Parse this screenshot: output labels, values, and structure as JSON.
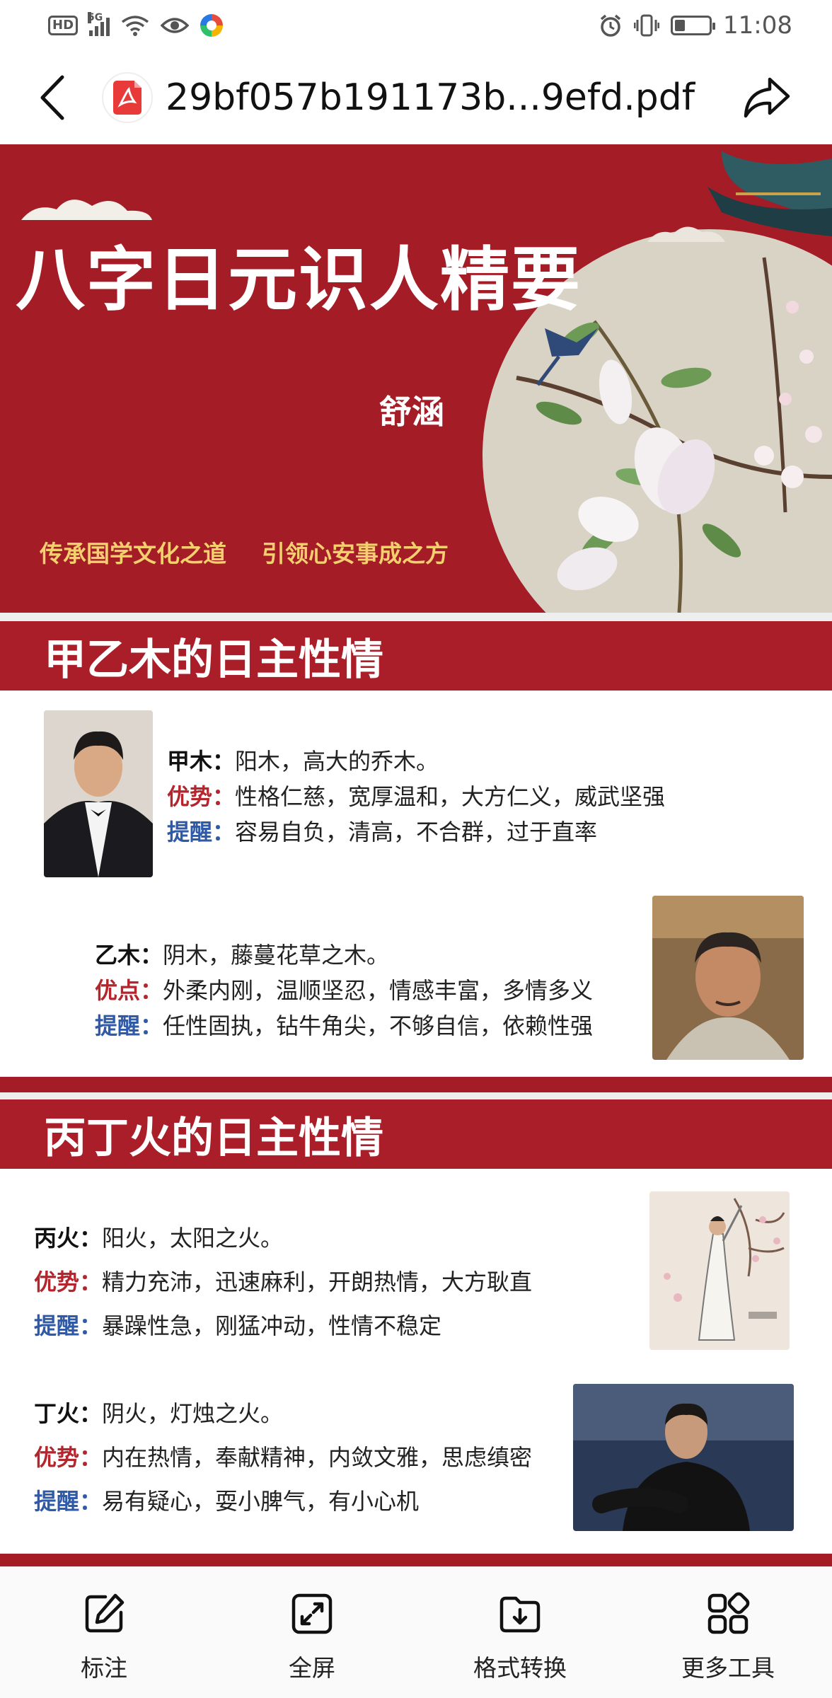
{
  "status_bar": {
    "hd": "HD",
    "signal_gen": "5G",
    "time": "11:08"
  },
  "top_bar": {
    "title": "29bf057b191173b...9efd.pdf",
    "icons": [
      "back-icon",
      "pdf-file-icon",
      "share-icon"
    ]
  },
  "banner": {
    "title": "八字日元识人精要",
    "author": "舒涵",
    "slogan_left": "传承国学文化之道",
    "slogan_right": "引领心安事成之方"
  },
  "sections": [
    {
      "title": "甲乙木的日主性情",
      "entries": [
        {
          "name": "甲木",
          "desc": "阳木，高大的乔木。",
          "strength_label": "优势",
          "strength": "性格仁慈，宽厚温和，大方仁义，威武坚强",
          "remind_label": "提醒",
          "remind": "容易自负，清高，不合群，过于直率"
        },
        {
          "name": "乙木",
          "desc": "阴木，藤蔓花草之木。",
          "strength_label": "优点",
          "strength": "外柔内刚，温顺坚忍，情感丰富，多情多义",
          "remind_label": "提醒",
          "remind": "任性固执，钻牛角尖，不够自信，依赖性强"
        }
      ]
    },
    {
      "title": "丙丁火的日主性情",
      "entries": [
        {
          "name": "丙火",
          "desc": "阳火，太阳之火。",
          "strength_label": "优势",
          "strength": "精力充沛，迅速麻利，开朗热情，大方耿直",
          "remind_label": "提醒",
          "remind": "暴躁性急，刚猛冲动，性情不稳定"
        },
        {
          "name": "丁火",
          "desc": "阴火，灯烛之火。",
          "strength_label": "优势",
          "strength": "内在热情，奉献精神，内敛文雅，思虑缜密",
          "remind_label": "提醒",
          "remind": "易有疑心，耍小脾气，有小心机"
        }
      ]
    }
  ],
  "bottom_bar": {
    "tools": [
      {
        "label": "标注",
        "icon": "edit-icon"
      },
      {
        "label": "全屏",
        "icon": "fullscreen-icon"
      },
      {
        "label": "格式转换",
        "icon": "folder-download-icon"
      },
      {
        "label": "更多工具",
        "icon": "grid-icon"
      }
    ]
  },
  "colors": {
    "brand_red": "#a91e28",
    "slogan_gold": "#f3cf6e",
    "strength_red": "#b3262e",
    "remind_blue": "#2e5aa8"
  }
}
